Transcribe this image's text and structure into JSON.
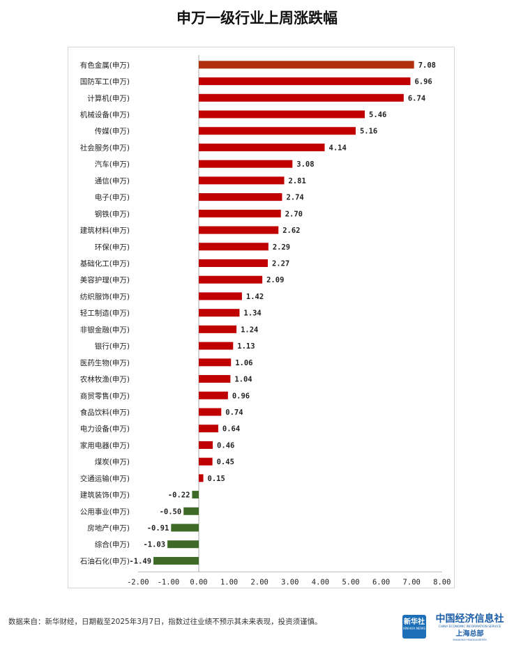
{
  "chart_data": {
    "type": "bar",
    "orientation": "horizontal",
    "title": "申万一级行业上周涨跌幅",
    "categories": [
      "有色金属(申万)",
      "国防军工(申万)",
      "计算机(申万)",
      "机械设备(申万)",
      "传媒(申万)",
      "社会服务(申万)",
      "汽车(申万)",
      "通信(申万)",
      "电子(申万)",
      "钢铁(申万)",
      "建筑材料(申万)",
      "环保(申万)",
      "基础化工(申万)",
      "美容护理(申万)",
      "纺织服饰(申万)",
      "轻工制造(申万)",
      "非银金融(申万)",
      "银行(申万)",
      "医药生物(申万)",
      "农林牧渔(申万)",
      "商贸零售(申万)",
      "食品饮料(申万)",
      "电力设备(申万)",
      "家用电器(申万)",
      "煤炭(申万)",
      "交通运输(申万)",
      "建筑装饰(申万)",
      "公用事业(申万)",
      "房地产(申万)",
      "综合(申万)",
      "石油石化(申万)"
    ],
    "values": [
      7.08,
      6.96,
      6.74,
      5.46,
      5.16,
      4.14,
      3.08,
      2.81,
      2.74,
      2.7,
      2.62,
      2.29,
      2.27,
      2.09,
      1.42,
      1.34,
      1.24,
      1.13,
      1.06,
      1.04,
      0.96,
      0.74,
      0.64,
      0.46,
      0.45,
      0.15,
      -0.22,
      -0.5,
      -0.91,
      -1.03,
      -1.49
    ],
    "value_labels": [
      "7.08",
      "6.96",
      "6.74",
      "5.46",
      "5.16",
      "4.14",
      "3.08",
      "2.81",
      "2.74",
      "2.70",
      "2.62",
      "2.29",
      "2.27",
      "2.09",
      "1.42",
      "1.34",
      "1.24",
      "1.13",
      "1.06",
      "1.04",
      "0.96",
      "0.74",
      "0.64",
      "0.46",
      "0.45",
      "0.15",
      "-0.22",
      "-0.50",
      "-0.91",
      "-1.03",
      "-1.49"
    ],
    "xlim": [
      -2,
      8
    ],
    "x_ticks": [
      -2,
      -1,
      0,
      1,
      2,
      3,
      4,
      5,
      6,
      7,
      8
    ],
    "x_tick_labels": [
      "-2.00",
      "-1.00",
      "0.00",
      "1.00",
      "2.00",
      "3.00",
      "4.00",
      "5.00",
      "6.00",
      "7.00",
      "8.00"
    ],
    "grid": false,
    "legend": "none",
    "colors": {
      "top": "#b0300e",
      "positive": "#c00000",
      "negative": "#3d6b27"
    }
  },
  "footer": {
    "source": "数据来自：新华财经，日期截至2025年3月7日，指数过往业绩不预示其未来表现，投资须谨慎。",
    "logo_xinhua_cn": "新华社",
    "logo_xinhua_en": "XINHUA NEWS",
    "logo_cei_cn": "中国经济信息社",
    "logo_cei_en": "CHINA ECONOMIC INFORMATION SERVICE",
    "logo_cei_branch": "上海总部",
    "logo_cei_branch_en": "SHANGHAI HEADQUARTERS"
  }
}
